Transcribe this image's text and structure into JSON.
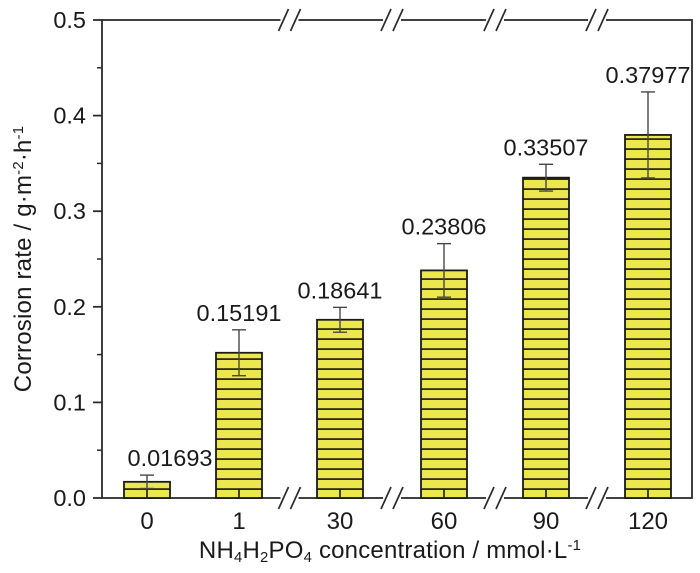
{
  "chart_data": {
    "type": "bar",
    "title": "",
    "categories": [
      "0",
      "1",
      "30",
      "60",
      "90",
      "120"
    ],
    "values": [
      0.01693,
      0.15191,
      0.18641,
      0.23806,
      0.33507,
      0.37977
    ],
    "value_labels": [
      "0.01693",
      "0.15191",
      "0.18641",
      "0.23806",
      "0.33507",
      "0.37977"
    ],
    "errors": [
      0.007,
      0.024,
      0.013,
      0.028,
      0.014,
      0.045
    ],
    "xlabel": "NH4H2PO4 concentration / mmol·L-1",
    "xlabel_segments": [
      {
        "t": "NH"
      },
      {
        "t": "4",
        "sub": true
      },
      {
        "t": "H"
      },
      {
        "t": "2",
        "sub": true
      },
      {
        "t": "PO"
      },
      {
        "t": "4",
        "sub": true
      },
      {
        "t": " concentration / mmol·L"
      },
      {
        "t": "-1",
        "sup": true
      }
    ],
    "ylabel": "Corrosion rate / g·m-2·h-1",
    "ylabel_segments": [
      {
        "t": "Corrosion rate / g·m"
      },
      {
        "t": "-2",
        "sup": true
      },
      {
        "t": "·h"
      },
      {
        "t": "-1",
        "sup": true
      }
    ],
    "ylim": [
      0.0,
      0.5
    ],
    "ytick_labels": [
      "0.0",
      "0.1",
      "0.2",
      "0.3",
      "0.4",
      "0.5"
    ],
    "ytick_step": 0.1,
    "minor_tick_step": 0.05,
    "axis_breaks_between_category_indices": [
      [
        1,
        2
      ],
      [
        2,
        3
      ],
      [
        3,
        4
      ],
      [
        4,
        5
      ]
    ],
    "grid": false,
    "legend": null,
    "colors": {
      "bar_fill": "#ece74f",
      "hatch_line": "#2e2b10",
      "bar_border": "#1a1a1a",
      "axis": "#2b2b2b",
      "error_bar": "#474747",
      "text": "#1a1a1a",
      "background": "#ffffff"
    }
  }
}
